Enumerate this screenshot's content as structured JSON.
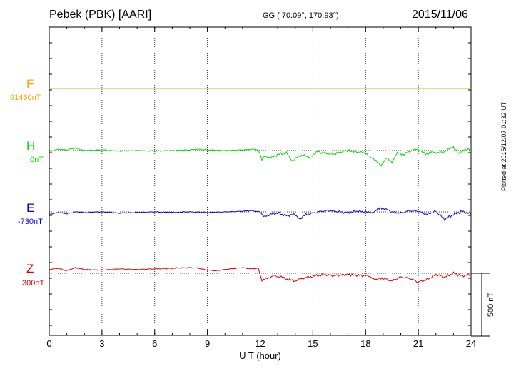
{
  "header": {
    "station": "Pebek (PBK)  [AARI]",
    "coords": "GG ( 70.09°, 170.93°)",
    "date": "2015/11/06"
  },
  "plotted_note": "Plotted at 2015/12/07 01:32 UT",
  "colors": {
    "F": "#ffa500",
    "H": "#00dd00",
    "E": "#0000dd",
    "Z": "#dd0000",
    "axis": "#000000",
    "grid": "#000000"
  },
  "chart_data": {
    "type": "line",
    "title": "Pebek (PBK)  [AARI]",
    "xlabel": "U T (hour)",
    "ylabel": "",
    "xlim": [
      0,
      24
    ],
    "xticks": [
      "0",
      "3",
      "6",
      "9",
      "12",
      "15",
      "18",
      "21",
      "24"
    ],
    "scale_bar_label": "500 nT",
    "scale_bar_nT": 500,
    "series": [
      {
        "name": "F",
        "baseline_label": "91460nT",
        "baseline_nT": 91460,
        "hours": [
          0,
          24
        ],
        "offsets": [
          0,
          0
        ]
      },
      {
        "name": "H",
        "baseline_label": "0nT",
        "baseline_nT": 0,
        "hours": [
          0,
          0.5,
          1,
          1.5,
          2,
          3,
          4,
          5,
          6,
          7,
          8,
          8.5,
          9,
          10,
          11,
          11.5,
          11.9,
          12.1,
          12.3,
          12.6,
          13,
          13.5,
          13.8,
          14.2,
          14.5,
          14.8,
          15.2,
          15.7,
          16.2,
          16.8,
          17.5,
          18,
          18.3,
          18.6,
          18.9,
          19.2,
          19.5,
          19.8,
          20.2,
          20.6,
          21,
          21.4,
          21.8,
          22.2,
          22.6,
          23,
          23.3,
          23.6,
          24
        ],
        "offsets": [
          -10,
          10,
          5,
          20,
          0,
          5,
          -5,
          0,
          -5,
          0,
          5,
          10,
          5,
          0,
          5,
          10,
          5,
          -70,
          -40,
          -60,
          -30,
          -20,
          -80,
          -50,
          -30,
          -60,
          -10,
          -20,
          -30,
          0,
          -10,
          -20,
          -60,
          -80,
          -120,
          -60,
          -90,
          -20,
          -30,
          0,
          10,
          -30,
          -10,
          -20,
          0,
          30,
          -30,
          10,
          5
        ]
      },
      {
        "name": "E",
        "baseline_label": "-730nT",
        "baseline_nT": -730,
        "hours": [
          0,
          0.5,
          1,
          1.5,
          2,
          3,
          4,
          5,
          6,
          7,
          8,
          9,
          10,
          11,
          11.5,
          12,
          12.2,
          12.5,
          13,
          13.5,
          14,
          14.3,
          14.6,
          15,
          15.5,
          16,
          16.5,
          17,
          17.5,
          18,
          18.3,
          18.7,
          19,
          19.5,
          20,
          20.5,
          21,
          21.5,
          22,
          22.5,
          23,
          23.5,
          24
        ],
        "offsets": [
          -20,
          -5,
          -15,
          0,
          -5,
          0,
          -10,
          -5,
          0,
          -5,
          0,
          -5,
          0,
          5,
          10,
          0,
          -40,
          -20,
          -10,
          -30,
          -20,
          -60,
          -20,
          -10,
          5,
          10,
          0,
          -5,
          5,
          0,
          -10,
          20,
          30,
          0,
          -10,
          10,
          5,
          -20,
          5,
          -60,
          -20,
          5,
          -20
        ]
      },
      {
        "name": "Z",
        "baseline_label": "300nT",
        "baseline_nT": 300,
        "hours": [
          0,
          0.5,
          1,
          1.5,
          2,
          3,
          4,
          5,
          6,
          7,
          8,
          8.5,
          9,
          9.5,
          10,
          11,
          11.5,
          11.9,
          12.1,
          12.4,
          12.8,
          13.2,
          13.6,
          14,
          14.4,
          14.8,
          15.2,
          15.7,
          16.2,
          16.8,
          17.5,
          18,
          18.3,
          18.6,
          19,
          19.5,
          20,
          20.5,
          21,
          21.5,
          22,
          22.5,
          23,
          23.5,
          24
        ],
        "offsets": [
          30,
          40,
          20,
          45,
          30,
          25,
          35,
          30,
          35,
          40,
          45,
          40,
          25,
          20,
          30,
          45,
          35,
          40,
          -60,
          -40,
          -20,
          -30,
          -50,
          -60,
          -40,
          -30,
          -20,
          -10,
          -20,
          -10,
          -15,
          -20,
          -30,
          -50,
          -40,
          -60,
          -30,
          -40,
          -70,
          -50,
          -10,
          -30,
          0,
          -20,
          -10
        ]
      }
    ]
  }
}
